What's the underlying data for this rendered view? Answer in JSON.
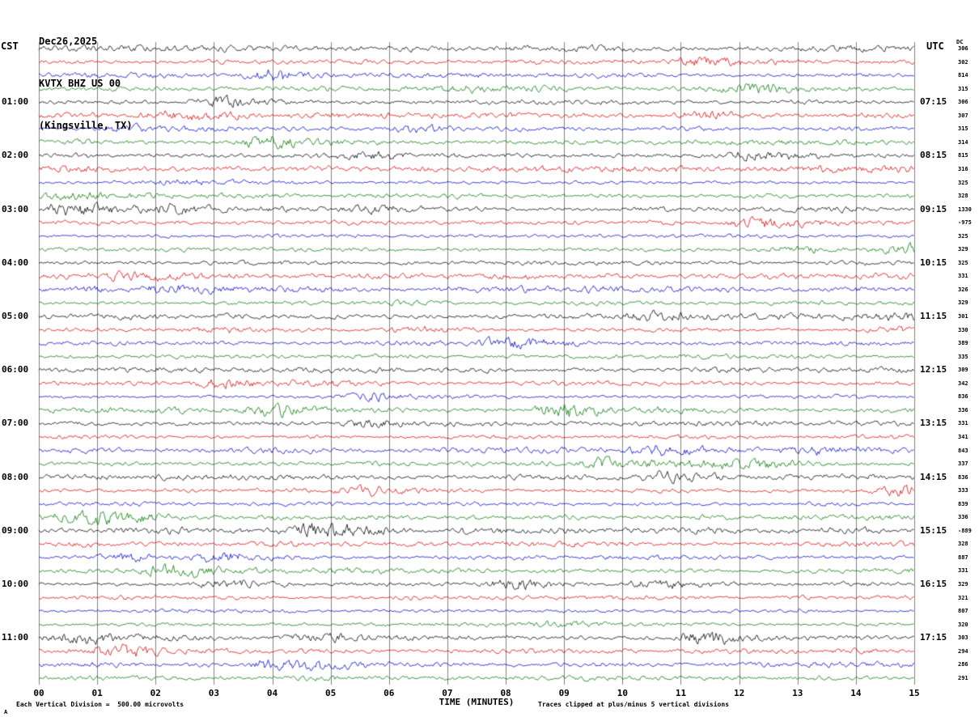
{
  "header": {
    "date": "Dec26,2025",
    "station": "KVTX BHZ US 00",
    "location": "(Kingsville, TX)",
    "left_tz": "CST",
    "right_tz": "UTC",
    "dc_header": "DC"
  },
  "footer": {
    "scale_note": "Each Vertical Division =  500.00 microvolts",
    "xaxis_title": "TIME (MINUTES)",
    "clip_note": "Traces clipped at plus/minus 5 vertical divisions",
    "corner_mark": "A"
  },
  "chart_data": {
    "type": "line",
    "subtype": "helicorder-seismogram",
    "title": "KVTX BHZ US 00 (Kingsville, TX) Dec26,2025",
    "xlabel": "TIME (MINUTES)",
    "x_range": [
      0,
      15
    ],
    "x_tick_labels": [
      "00",
      "01",
      "02",
      "03",
      "04",
      "05",
      "06",
      "07",
      "08",
      "09",
      "10",
      "11",
      "12",
      "13",
      "14",
      "15"
    ],
    "minutes_per_row": 15,
    "microvolts_per_division": 500.0,
    "clip_divisions": 5,
    "colors": {
      "trace_cycle": [
        "#000000",
        "#dd0000",
        "#0000cc",
        "#007700"
      ],
      "grid": "#808080",
      "text": "#000000"
    },
    "rows": [
      {
        "left": "",
        "right": "",
        "dc": "306"
      },
      {
        "left": "",
        "right": "",
        "dc": "302"
      },
      {
        "left": "",
        "right": "",
        "dc": "814"
      },
      {
        "left": "",
        "right": "",
        "dc": "315"
      },
      {
        "left": "01:00",
        "right": "07:15",
        "dc": "306"
      },
      {
        "left": "",
        "right": "",
        "dc": "307"
      },
      {
        "left": "",
        "right": "",
        "dc": "315"
      },
      {
        "left": "",
        "right": "",
        "dc": "314"
      },
      {
        "left": "02:00",
        "right": "08:15",
        "dc": "815"
      },
      {
        "left": "",
        "right": "",
        "dc": "316"
      },
      {
        "left": "",
        "right": "",
        "dc": "325"
      },
      {
        "left": "",
        "right": "",
        "dc": "328"
      },
      {
        "left": "03:00",
        "right": "09:15",
        "dc": "1330"
      },
      {
        "left": "",
        "right": "",
        "dc": "-975"
      },
      {
        "left": "",
        "right": "",
        "dc": "325"
      },
      {
        "left": "",
        "right": "",
        "dc": "329"
      },
      {
        "left": "04:00",
        "right": "10:15",
        "dc": "325"
      },
      {
        "left": "",
        "right": "",
        "dc": "331"
      },
      {
        "left": "",
        "right": "",
        "dc": "326"
      },
      {
        "left": "",
        "right": "",
        "dc": "329"
      },
      {
        "left": "05:00",
        "right": "11:15",
        "dc": "301"
      },
      {
        "left": "",
        "right": "",
        "dc": "330"
      },
      {
        "left": "",
        "right": "",
        "dc": "389"
      },
      {
        "left": "",
        "right": "",
        "dc": "335"
      },
      {
        "left": "06:00",
        "right": "12:15",
        "dc": "309"
      },
      {
        "left": "",
        "right": "",
        "dc": "342"
      },
      {
        "left": "",
        "right": "",
        "dc": "836"
      },
      {
        "left": "",
        "right": "",
        "dc": "336"
      },
      {
        "left": "07:00",
        "right": "13:15",
        "dc": "331"
      },
      {
        "left": "",
        "right": "",
        "dc": "341"
      },
      {
        "left": "",
        "right": "",
        "dc": "843"
      },
      {
        "left": "",
        "right": "",
        "dc": "337"
      },
      {
        "left": "08:00",
        "right": "14:15",
        "dc": "836"
      },
      {
        "left": "",
        "right": "",
        "dc": "333"
      },
      {
        "left": "",
        "right": "",
        "dc": "839"
      },
      {
        "left": "",
        "right": "",
        "dc": "336"
      },
      {
        "left": "09:00",
        "right": "15:15",
        "dc": "-889"
      },
      {
        "left": "",
        "right": "",
        "dc": "328"
      },
      {
        "left": "",
        "right": "",
        "dc": "887"
      },
      {
        "left": "",
        "right": "",
        "dc": "331"
      },
      {
        "left": "10:00",
        "right": "16:15",
        "dc": "329"
      },
      {
        "left": "",
        "right": "",
        "dc": "321"
      },
      {
        "left": "",
        "right": "",
        "dc": "807"
      },
      {
        "left": "",
        "right": "",
        "dc": "320"
      },
      {
        "left": "11:00",
        "right": "17:15",
        "dc": "303"
      },
      {
        "left": "",
        "right": "",
        "dc": "294"
      },
      {
        "left": "",
        "right": "",
        "dc": "286"
      },
      {
        "left": "",
        "right": "",
        "dc": "291"
      }
    ]
  }
}
